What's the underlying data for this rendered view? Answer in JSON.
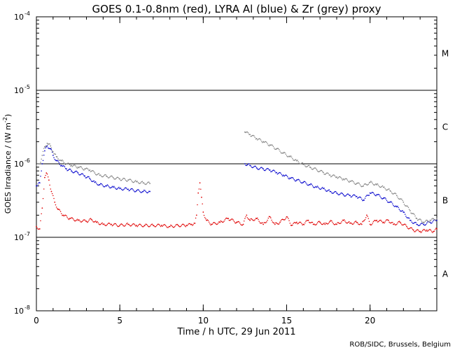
{
  "chart_data": {
    "type": "scatter",
    "title": "GOES 0.1-0.8nm (red), LYRA Al (blue) & Zr (grey) proxy",
    "xlabel": "Time / h UTC, 29 Jun 2011",
    "ylabel_main": "GOES Irradiance / (W m",
    "ylabel_sup": "-2",
    "ylabel_end": ")",
    "credit": "ROB/SIDC, Brussels, Belgium",
    "x_ticks": [
      0,
      5,
      10,
      15,
      20
    ],
    "x_lim": [
      0,
      24
    ],
    "y_scale": "log",
    "y_lim": [
      1e-08,
      0.0001
    ],
    "y_ticks": [
      {
        "value": 1e-08,
        "base": "10",
        "exp": "-8"
      },
      {
        "value": 1e-07,
        "base": "10",
        "exp": "-7"
      },
      {
        "value": 1e-06,
        "base": "10",
        "exp": "-6"
      },
      {
        "value": 1e-05,
        "base": "10",
        "exp": "-5"
      },
      {
        "value": 0.0001,
        "base": "10",
        "exp": "-4"
      }
    ],
    "flare_class_lines": [
      1e-07,
      1e-06,
      1e-05
    ],
    "flare_classes": [
      {
        "label": "A",
        "value": 3.16e-08
      },
      {
        "label": "B",
        "value": 3.16e-07
      },
      {
        "label": "C",
        "value": 3.16e-06
      },
      {
        "label": "M",
        "value": 3.16e-05
      }
    ],
    "series": [
      {
        "color": "#e00000",
        "points": [
          [
            0.0,
            1.4e-07
          ],
          [
            0.2,
            1.3e-07
          ],
          [
            0.35,
            2.5e-07
          ],
          [
            0.5,
            6.5e-07
          ],
          [
            0.6,
            7.5e-07
          ],
          [
            0.75,
            6e-07
          ],
          [
            0.9,
            4.2e-07
          ],
          [
            1.1,
            3e-07
          ],
          [
            1.3,
            2.4e-07
          ],
          [
            1.6,
            2e-07
          ],
          [
            2.0,
            1.8e-07
          ],
          [
            2.5,
            1.7e-07
          ],
          [
            3.0,
            1.65e-07
          ],
          [
            3.3,
            1.75e-07
          ],
          [
            3.6,
            1.6e-07
          ],
          [
            4.0,
            1.5e-07
          ],
          [
            4.5,
            1.5e-07
          ],
          [
            5.0,
            1.45e-07
          ],
          [
            5.5,
            1.5e-07
          ],
          [
            6.0,
            1.45e-07
          ],
          [
            6.5,
            1.45e-07
          ],
          [
            7.0,
            1.45e-07
          ],
          [
            7.5,
            1.45e-07
          ],
          [
            8.0,
            1.4e-07
          ],
          [
            8.5,
            1.45e-07
          ],
          [
            9.0,
            1.45e-07
          ],
          [
            9.3,
            1.5e-07
          ],
          [
            9.5,
            1.55e-07
          ],
          [
            9.6,
            2e-07
          ],
          [
            9.7,
            4e-07
          ],
          [
            9.8,
            5.5e-07
          ],
          [
            9.9,
            3.5e-07
          ],
          [
            10.0,
            2.2e-07
          ],
          [
            10.2,
            1.7e-07
          ],
          [
            10.5,
            1.5e-07
          ],
          [
            11.0,
            1.6e-07
          ],
          [
            11.5,
            1.8e-07
          ],
          [
            12.0,
            1.6e-07
          ],
          [
            12.4,
            1.5e-07
          ],
          [
            12.6,
            2e-07
          ],
          [
            12.8,
            1.7e-07
          ],
          [
            13.2,
            1.8e-07
          ],
          [
            13.6,
            1.5e-07
          ],
          [
            14.0,
            1.9e-07
          ],
          [
            14.3,
            1.5e-07
          ],
          [
            14.6,
            1.6e-07
          ],
          [
            15.0,
            1.9e-07
          ],
          [
            15.3,
            1.45e-07
          ],
          [
            15.6,
            1.6e-07
          ],
          [
            16.0,
            1.5e-07
          ],
          [
            16.3,
            1.7e-07
          ],
          [
            16.6,
            1.5e-07
          ],
          [
            17.0,
            1.6e-07
          ],
          [
            17.3,
            1.5e-07
          ],
          [
            17.6,
            1.65e-07
          ],
          [
            18.0,
            1.5e-07
          ],
          [
            18.4,
            1.7e-07
          ],
          [
            18.8,
            1.55e-07
          ],
          [
            19.2,
            1.6e-07
          ],
          [
            19.5,
            1.5e-07
          ],
          [
            19.8,
            2e-07
          ],
          [
            20.0,
            1.5e-07
          ],
          [
            20.4,
            1.7e-07
          ],
          [
            20.8,
            1.6e-07
          ],
          [
            21.1,
            1.7e-07
          ],
          [
            21.4,
            1.5e-07
          ],
          [
            21.8,
            1.6e-07
          ],
          [
            22.2,
            1.4e-07
          ],
          [
            22.6,
            1.25e-07
          ],
          [
            23.0,
            1.2e-07
          ],
          [
            23.4,
            1.25e-07
          ],
          [
            23.8,
            1.2e-07
          ],
          [
            24.0,
            1.3e-07
          ]
        ]
      },
      {
        "color": "#0000cc",
        "points": [
          [
            0.0,
            5e-07
          ],
          [
            0.2,
            5.5e-07
          ],
          [
            0.35,
            1e-06
          ],
          [
            0.5,
            1.5e-06
          ],
          [
            0.65,
            1.75e-06
          ],
          [
            0.85,
            1.6e-06
          ],
          [
            1.0,
            1.3e-06
          ],
          [
            1.2,
            1.1e-06
          ],
          [
            1.5,
            9.5e-07
          ],
          [
            1.8,
            8.5e-07
          ],
          [
            2.1,
            8e-07
          ],
          [
            2.5,
            7.5e-07
          ],
          [
            2.9,
            6.8e-07
          ],
          [
            3.2,
            6.3e-07
          ],
          [
            3.5,
            5.6e-07
          ],
          [
            3.8,
            5.2e-07
          ],
          [
            4.2,
            5e-07
          ],
          [
            4.6,
            4.8e-07
          ],
          [
            5.0,
            4.6e-07
          ],
          [
            5.5,
            4.5e-07
          ],
          [
            6.0,
            4.3e-07
          ],
          [
            6.4,
            4.2e-07
          ],
          [
            6.8,
            4.2e-07
          ],
          [
            12.5,
            1e-06
          ],
          [
            12.8,
            9.5e-07
          ],
          [
            13.2,
            8.8e-07
          ],
          [
            13.6,
            8.5e-07
          ],
          [
            14.0,
            8.2e-07
          ],
          [
            14.4,
            7.6e-07
          ],
          [
            14.8,
            7e-07
          ],
          [
            15.2,
            6.4e-07
          ],
          [
            15.6,
            6e-07
          ],
          [
            16.0,
            5.6e-07
          ],
          [
            16.4,
            5.2e-07
          ],
          [
            16.8,
            4.8e-07
          ],
          [
            17.2,
            4.6e-07
          ],
          [
            17.6,
            4.2e-07
          ],
          [
            18.0,
            4e-07
          ],
          [
            18.4,
            3.8e-07
          ],
          [
            18.8,
            3.7e-07
          ],
          [
            19.2,
            3.6e-07
          ],
          [
            19.6,
            3.2e-07
          ],
          [
            20.0,
            4e-07
          ],
          [
            20.4,
            3.8e-07
          ],
          [
            20.8,
            3.4e-07
          ],
          [
            21.2,
            3e-07
          ],
          [
            21.6,
            2.6e-07
          ],
          [
            22.0,
            2.2e-07
          ],
          [
            22.4,
            1.7e-07
          ],
          [
            22.8,
            1.5e-07
          ],
          [
            23.2,
            1.5e-07
          ],
          [
            23.6,
            1.6e-07
          ],
          [
            24.0,
            1.7e-07
          ]
        ]
      },
      {
        "color": "#808080",
        "points": [
          [
            0.0,
            9.5e-07
          ],
          [
            0.2,
            1e-06
          ],
          [
            0.35,
            1.3e-06
          ],
          [
            0.5,
            1.7e-06
          ],
          [
            0.65,
            1.9e-06
          ],
          [
            0.85,
            1.75e-06
          ],
          [
            1.0,
            1.45e-06
          ],
          [
            1.2,
            1.25e-06
          ],
          [
            1.5,
            1.1e-06
          ],
          [
            1.8,
            1e-06
          ],
          [
            2.1,
            9.5e-07
          ],
          [
            2.5,
            9e-07
          ],
          [
            2.9,
            8.5e-07
          ],
          [
            3.2,
            8.2e-07
          ],
          [
            3.5,
            7.5e-07
          ],
          [
            3.8,
            7e-07
          ],
          [
            4.2,
            6.8e-07
          ],
          [
            4.6,
            6.5e-07
          ],
          [
            5.0,
            6.2e-07
          ],
          [
            5.5,
            6e-07
          ],
          [
            6.0,
            5.7e-07
          ],
          [
            6.4,
            5.5e-07
          ],
          [
            6.8,
            5.4e-07
          ],
          [
            12.5,
            2.7e-06
          ],
          [
            12.8,
            2.5e-06
          ],
          [
            13.2,
            2.2e-06
          ],
          [
            13.6,
            2e-06
          ],
          [
            14.0,
            1.8e-06
          ],
          [
            14.4,
            1.6e-06
          ],
          [
            14.8,
            1.4e-06
          ],
          [
            15.2,
            1.25e-06
          ],
          [
            15.6,
            1.1e-06
          ],
          [
            16.0,
            9.8e-07
          ],
          [
            16.4,
            9e-07
          ],
          [
            16.8,
            8.3e-07
          ],
          [
            17.2,
            7.6e-07
          ],
          [
            17.6,
            7e-07
          ],
          [
            18.0,
            6.6e-07
          ],
          [
            18.4,
            6.2e-07
          ],
          [
            18.8,
            5.8e-07
          ],
          [
            19.2,
            5.4e-07
          ],
          [
            19.6,
            5e-07
          ],
          [
            20.0,
            5.6e-07
          ],
          [
            20.4,
            5.2e-07
          ],
          [
            20.8,
            4.8e-07
          ],
          [
            21.2,
            4.3e-07
          ],
          [
            21.6,
            3.7e-07
          ],
          [
            22.0,
            3e-07
          ],
          [
            22.4,
            2.3e-07
          ],
          [
            22.8,
            1.8e-07
          ],
          [
            23.2,
            1.6e-07
          ],
          [
            23.6,
            1.7e-07
          ],
          [
            24.0,
            1.8e-07
          ]
        ]
      }
    ]
  }
}
